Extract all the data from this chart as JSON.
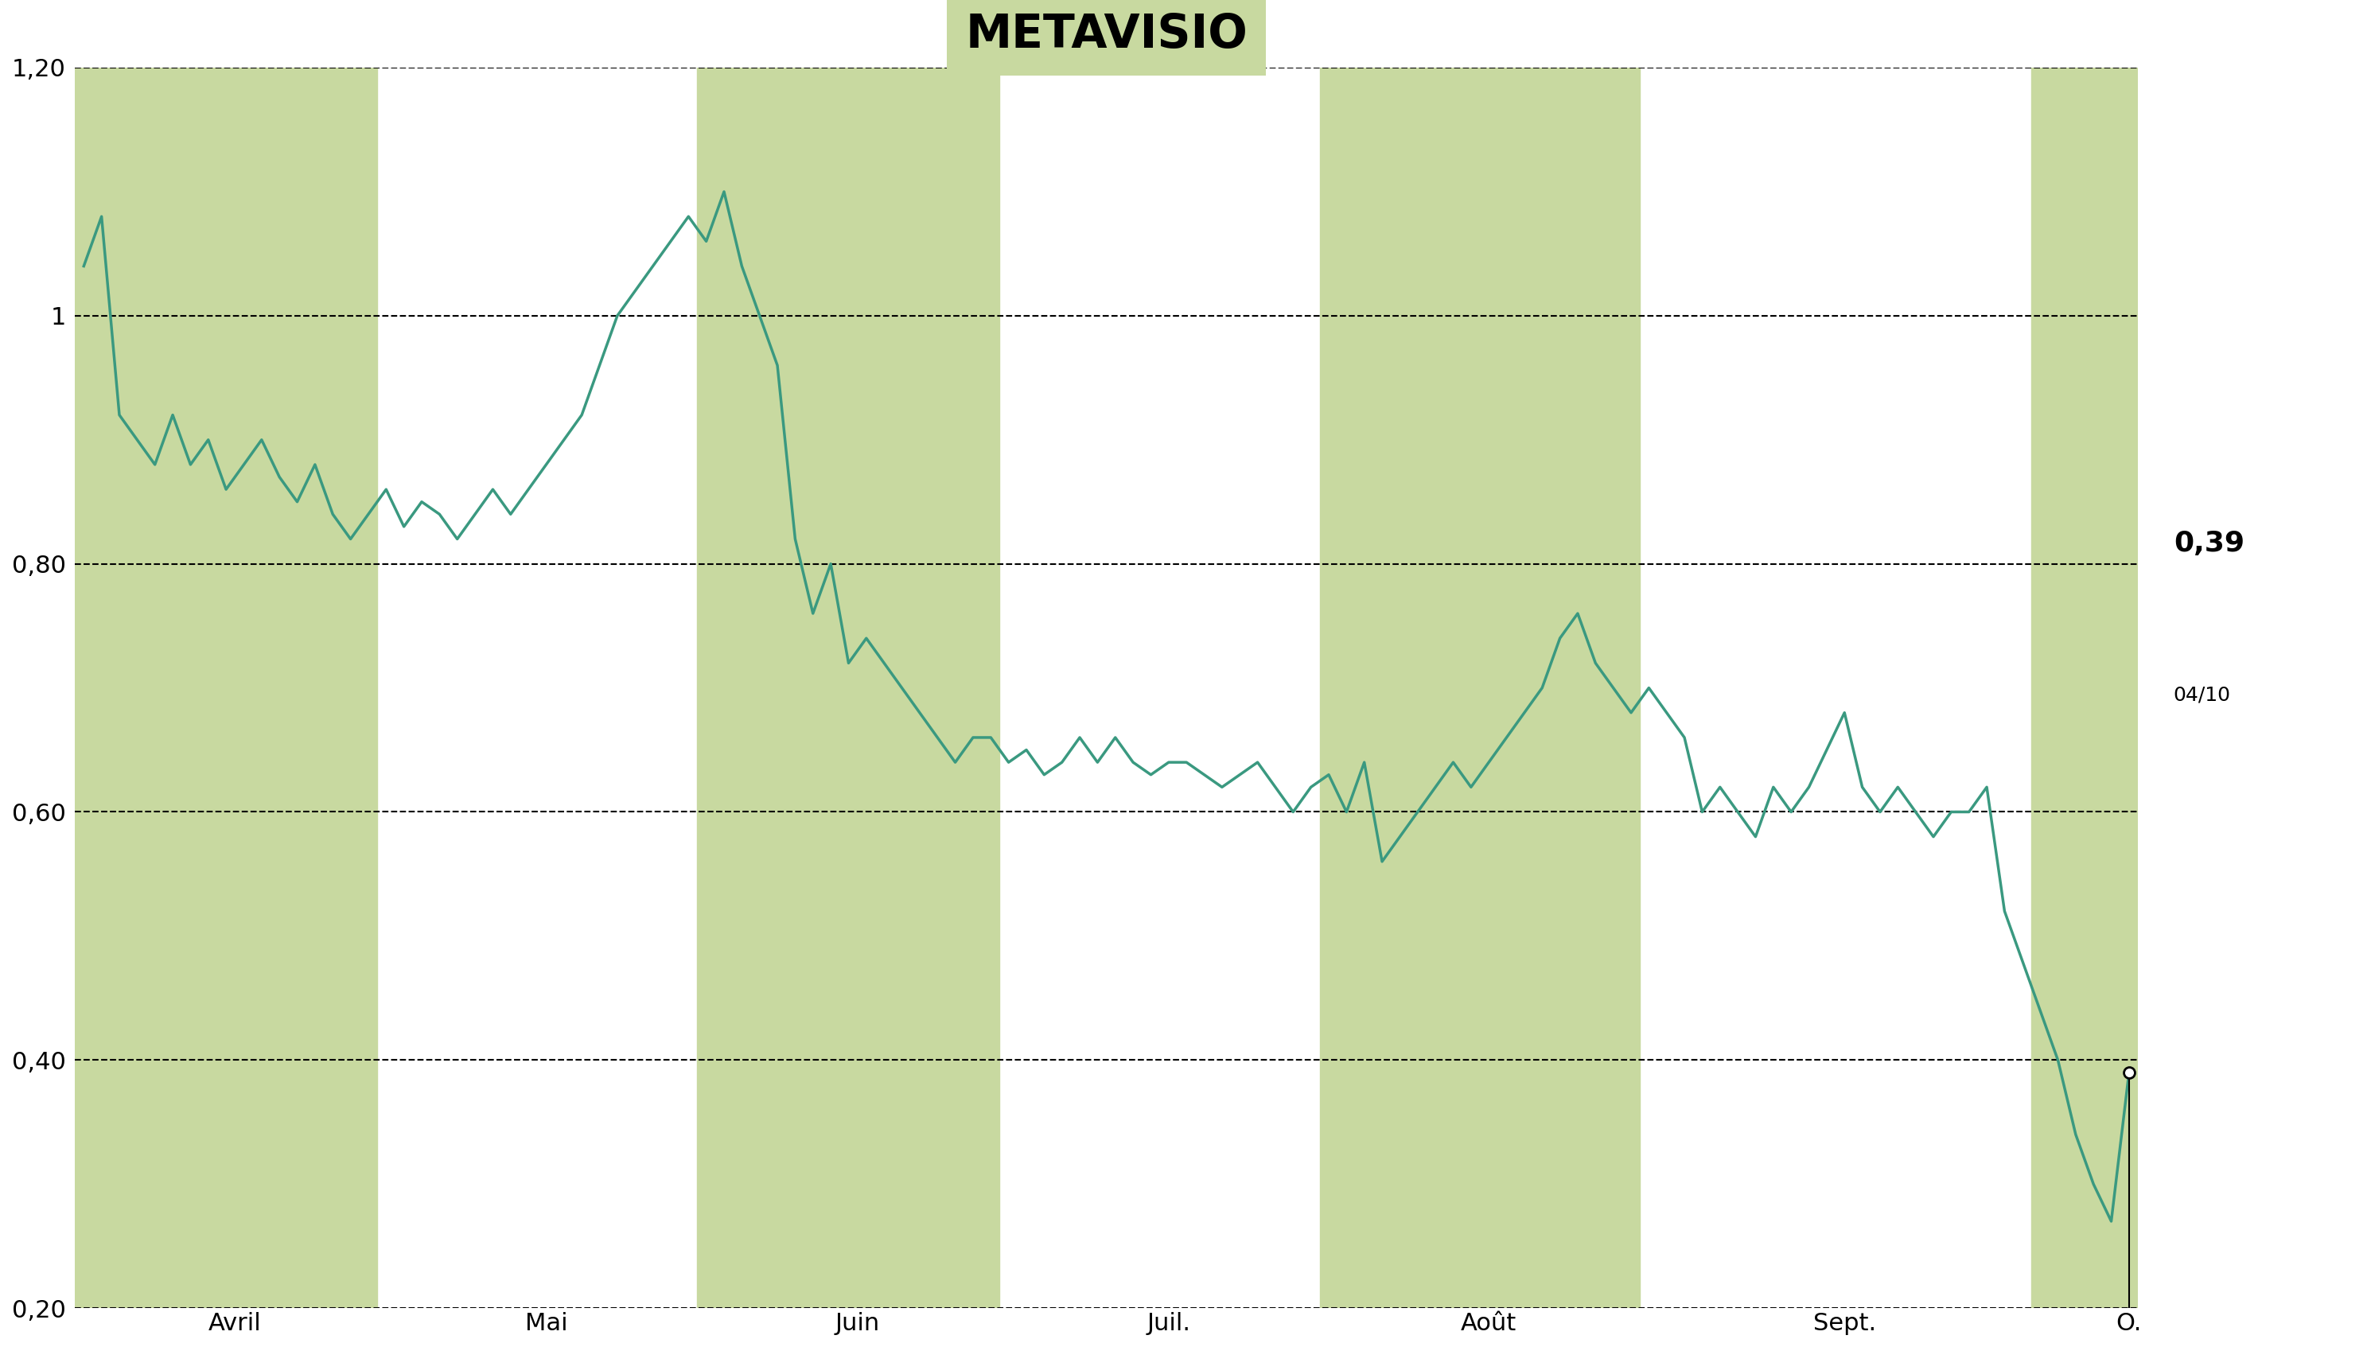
{
  "title": "METAVISIO",
  "title_bg_color": "#c8d9a0",
  "bg_color": "#ffffff",
  "line_color": "#3a9980",
  "line_width": 2.5,
  "fill_color": "#c8d9a0",
  "ylim": [
    0.2,
    1.2
  ],
  "yticks": [
    0.2,
    0.4,
    0.6,
    0.8,
    1.0,
    1.2
  ],
  "ytick_labels": [
    "0,20",
    "0,40",
    "0,60",
    "0,80",
    "1",
    "1,20"
  ],
  "month_labels": [
    "Avril",
    "Mai",
    "Juin",
    "Juil.",
    "Août",
    "Sept.",
    "O."
  ],
  "last_price": "0,39",
  "last_date": "04/10",
  "prices": [
    1.04,
    1.08,
    0.92,
    0.9,
    0.88,
    0.92,
    0.88,
    0.9,
    0.86,
    0.88,
    0.9,
    0.87,
    0.85,
    0.88,
    0.84,
    0.82,
    0.84,
    0.86,
    0.83,
    0.85,
    0.84,
    0.82,
    0.84,
    0.86,
    0.84,
    0.86,
    0.88,
    0.9,
    0.92,
    0.96,
    1.0,
    1.02,
    1.04,
    1.06,
    1.08,
    1.06,
    1.1,
    1.04,
    1.0,
    0.96,
    0.82,
    0.76,
    0.8,
    0.72,
    0.74,
    0.72,
    0.7,
    0.68,
    0.66,
    0.64,
    0.66,
    0.66,
    0.64,
    0.65,
    0.63,
    0.64,
    0.66,
    0.64,
    0.66,
    0.64,
    0.63,
    0.64,
    0.64,
    0.63,
    0.62,
    0.63,
    0.64,
    0.62,
    0.6,
    0.62,
    0.63,
    0.6,
    0.64,
    0.56,
    0.58,
    0.6,
    0.62,
    0.64,
    0.62,
    0.64,
    0.66,
    0.68,
    0.7,
    0.74,
    0.76,
    0.72,
    0.7,
    0.68,
    0.7,
    0.68,
    0.66,
    0.6,
    0.62,
    0.6,
    0.58,
    0.62,
    0.6,
    0.62,
    0.65,
    0.68,
    0.62,
    0.6,
    0.62,
    0.6,
    0.58,
    0.6,
    0.6,
    0.62,
    0.52,
    0.48,
    0.44,
    0.4,
    0.34,
    0.3,
    0.27,
    0.39
  ],
  "shaded_months": [
    0,
    2,
    4,
    6
  ],
  "n_months": 7,
  "month_positions": [
    0,
    17,
    35,
    52,
    70,
    88,
    110
  ],
  "month_widths": [
    17,
    18,
    17,
    18,
    18,
    22,
    10
  ]
}
